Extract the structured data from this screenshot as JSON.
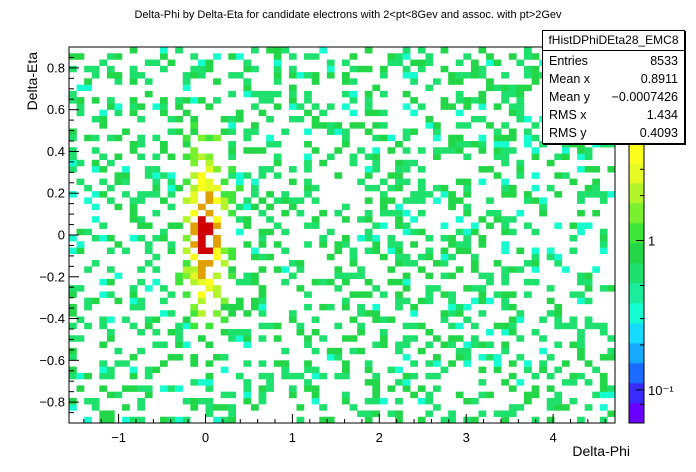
{
  "title": "Delta-Phi by Delta-Eta for candidate electrons with 2<pt<8Gev and assoc. with pt>2Gev",
  "stats_box": {
    "name": "fHistDPhiDEta28_EMC8",
    "rows": [
      {
        "key": "Entries",
        "value": "8533"
      },
      {
        "key": "Mean x",
        "value": "0.8911"
      },
      {
        "key": "Mean y",
        "value": "−0.0007426"
      },
      {
        "key": "RMS x",
        "value": "1.434"
      },
      {
        "key": "RMS y",
        "value": "0.4093"
      }
    ]
  },
  "palette": {
    "colors": [
      "#6a00ff",
      "#3a2cff",
      "#1a6cff",
      "#16aaff",
      "#16dcff",
      "#16ffd0",
      "#1aee9c",
      "#1ee06c",
      "#22d648",
      "#3ee63a",
      "#7af02e",
      "#b4f42a",
      "#e6fa26",
      "#ffff1e"
    ],
    "hot": "#e0a000",
    "peak": "#d00000",
    "tick_labels": [
      {
        "value": 1,
        "label": "1"
      },
      {
        "value": 0.1,
        "label": "10⁻¹"
      }
    ]
  },
  "chart_data": {
    "type": "heatmap",
    "xlabel": "Delta-Phi",
    "ylabel": "Delta-Eta",
    "xlim": [
      -1.5708,
      4.7124
    ],
    "ylim": [
      -0.9,
      0.9
    ],
    "bins": {
      "x": 72,
      "y": 60
    },
    "x_ticks": [
      -1,
      0,
      1,
      2,
      3,
      4
    ],
    "x_tick_labels": [
      "−1",
      "0",
      "1",
      "2",
      "3",
      "4"
    ],
    "y_ticks": [
      -0.8,
      -0.6,
      -0.4,
      -0.2,
      0,
      0.2,
      0.4,
      0.6,
      0.8
    ],
    "y_tick_labels": [
      "−0.8",
      "−0.6",
      "−0.4",
      "−0.2",
      "0",
      "0.2",
      "0.4",
      "0.6",
      "0.8"
    ],
    "entries": 8533,
    "near_side_peak": {
      "x": 0.0,
      "y": 0.0
    },
    "z_scale": "log"
  }
}
